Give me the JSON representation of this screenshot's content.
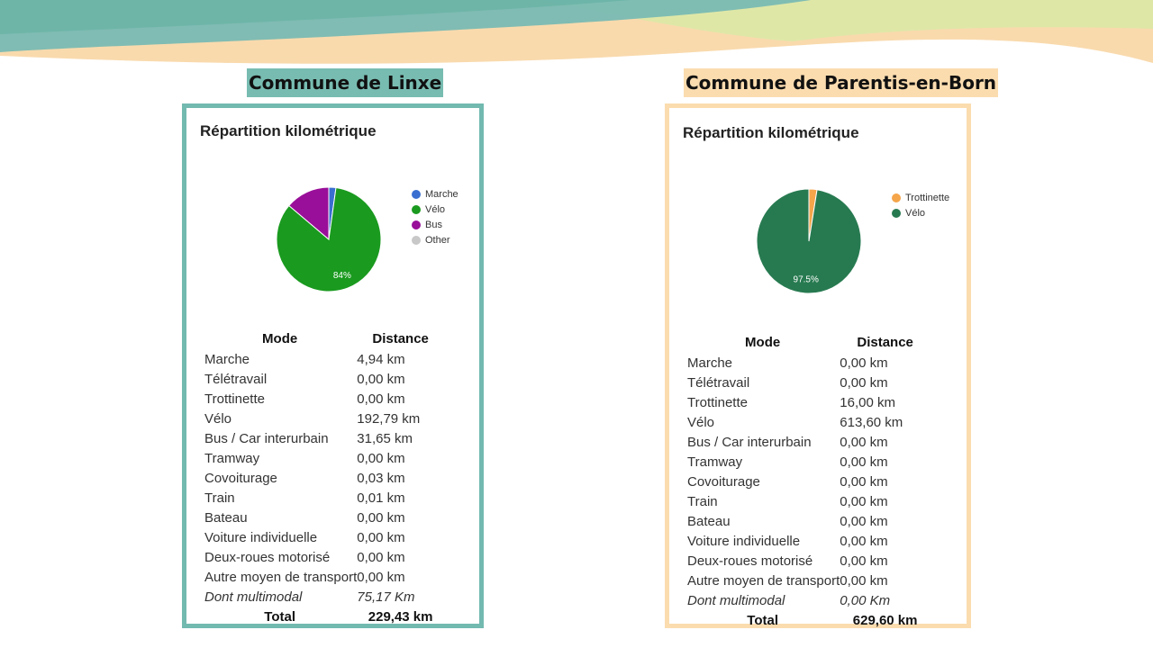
{
  "communes": [
    {
      "title": "Commune de Linxe",
      "panel_title": "Répartition kilométrique",
      "legend": [
        {
          "label": "Marche",
          "color": "#3a6fd1"
        },
        {
          "label": "Vélo",
          "color": "#1a9a1f"
        },
        {
          "label": "Bus",
          "color": "#990f99"
        },
        {
          "label": "Other",
          "color": "#c8c8c8"
        }
      ],
      "table": {
        "headers": [
          "Mode",
          "Distance"
        ],
        "rows": [
          [
            "Marche",
            "4,94 km"
          ],
          [
            "Télétravail",
            "0,00 km"
          ],
          [
            "Trottinette",
            "0,00 km"
          ],
          [
            "Vélo",
            "192,79 km"
          ],
          [
            "Bus / Car interurbain",
            "31,65 km"
          ],
          [
            "Tramway",
            "0,00 km"
          ],
          [
            "Covoiturage",
            "0,03 km"
          ],
          [
            "Train",
            "0,01 km"
          ],
          [
            "Bateau",
            "0,00 km"
          ],
          [
            "Voiture individuelle",
            "0,00 km"
          ],
          [
            "Deux-roues motorisé",
            "0,00 km"
          ],
          [
            "Autre moyen de transport",
            "0,00 km"
          ]
        ],
        "multimodal": [
          "Dont multimodal",
          "75,17 Km"
        ],
        "total": [
          "Total",
          "229,43 km"
        ]
      }
    },
    {
      "title": "Commune de Parentis-en-Born",
      "panel_title": "Répartition kilométrique",
      "legend": [
        {
          "label": "Trottinette",
          "color": "#f5a54a"
        },
        {
          "label": "Vélo",
          "color": "#277a50"
        }
      ],
      "table": {
        "headers": [
          "Mode",
          "Distance"
        ],
        "rows": [
          [
            "Marche",
            "0,00 km"
          ],
          [
            "Télétravail",
            "0,00 km"
          ],
          [
            "Trottinette",
            "16,00 km"
          ],
          [
            "Vélo",
            "613,60 km"
          ],
          [
            "Bus / Car interurbain",
            "0,00 km"
          ],
          [
            "Tramway",
            "0,00 km"
          ],
          [
            "Covoiturage",
            "0,00 km"
          ],
          [
            "Train",
            "0,00 km"
          ],
          [
            "Bateau",
            "0,00 km"
          ],
          [
            "Voiture individuelle",
            "0,00 km"
          ],
          [
            "Deux-roues motorisé",
            "0,00 km"
          ],
          [
            "Autre moyen de transport",
            "0,00 km"
          ]
        ],
        "multimodal": [
          "Dont multimodal",
          "0,00 Km"
        ],
        "total": [
          "Total",
          "629,60 km"
        ]
      }
    }
  ],
  "chart_data": [
    {
      "type": "pie",
      "title": "Répartition kilométrique",
      "categories": [
        "Marche",
        "Vélo",
        "Bus",
        "Other"
      ],
      "values": [
        2.2,
        84.0,
        13.8,
        0.0
      ],
      "colors": [
        "#3a6fd1",
        "#1a9a1f",
        "#990f99",
        "#c8c8c8"
      ],
      "labels": [
        "",
        "84%",
        "",
        ""
      ],
      "legend": "right"
    },
    {
      "type": "pie",
      "title": "Répartition kilométrique",
      "categories": [
        "Trottinette",
        "Vélo"
      ],
      "values": [
        2.5,
        97.5
      ],
      "colors": [
        "#f5a54a",
        "#277a50"
      ],
      "labels": [
        "",
        "97.5%"
      ],
      "legend": "right"
    }
  ]
}
